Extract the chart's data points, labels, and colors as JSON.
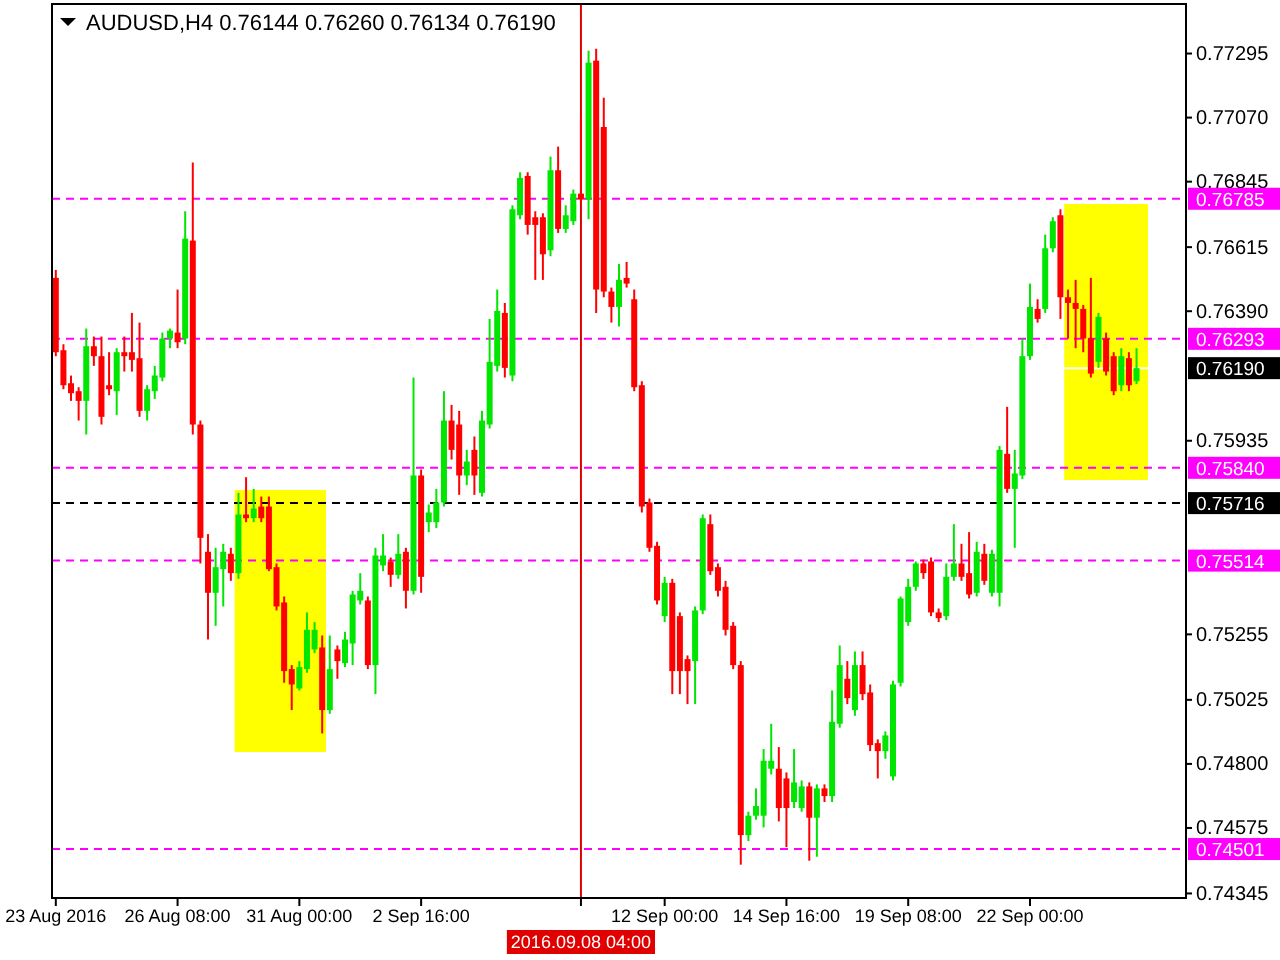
{
  "chart_data": {
    "type": "candlestick",
    "title": "AUDUSD,H4  0.76144 0.76260 0.76134 0.76190",
    "categories": [
      "23 Aug 2016",
      null,
      null,
      null,
      null,
      null,
      null,
      null,
      null,
      null,
      null,
      null,
      null,
      null,
      null,
      null,
      "26 Aug 08:00",
      null,
      null,
      null,
      null,
      null,
      null,
      null,
      null,
      null,
      null,
      null,
      null,
      null,
      null,
      null,
      "31 Aug 00:00",
      null,
      null,
      null,
      null,
      null,
      null,
      null,
      null,
      null,
      null,
      null,
      null,
      null,
      null,
      null,
      "2 Sep 16:00",
      null,
      null,
      null,
      null,
      null,
      null,
      null,
      null,
      null,
      null,
      null,
      null,
      null,
      null,
      null,
      null,
      null,
      null,
      null,
      null,
      "2016.09.08 04:00",
      null,
      null,
      null,
      null,
      null,
      null,
      null,
      null,
      null,
      null,
      "12 Sep 00:00",
      null,
      null,
      null,
      null,
      null,
      null,
      null,
      null,
      null,
      null,
      null,
      null,
      null,
      null,
      null,
      "14 Sep 16:00",
      null,
      null,
      null,
      null,
      null,
      null,
      null,
      null,
      null,
      null,
      null,
      null,
      null,
      null,
      null,
      "19 Sep 08:00",
      null,
      null,
      null,
      null,
      null,
      null,
      null,
      null,
      null,
      null,
      null,
      null,
      null,
      null,
      null,
      "22 Sep 00:00",
      null,
      null,
      null,
      null,
      null,
      null,
      null,
      null,
      null,
      null,
      null,
      null,
      null,
      null,
      null,
      null,
      null,
      null,
      null,
      null
    ],
    "ohlc": [
      [
        0.76507,
        0.76535,
        0.76232,
        0.76246
      ],
      [
        0.76253,
        0.76274,
        0.76116,
        0.7613
      ],
      [
        0.76137,
        0.76164,
        0.76075,
        0.76102
      ],
      [
        0.76109,
        0.76123,
        0.76006,
        0.76075
      ],
      [
        0.76075,
        0.76329,
        0.75957,
        0.76267
      ],
      [
        0.76267,
        0.76301,
        0.76198,
        0.76232
      ],
      [
        0.76232,
        0.76301,
        0.75992,
        0.76019
      ],
      [
        0.7613,
        0.76246,
        0.76095,
        0.76116
      ],
      [
        0.76109,
        0.7626,
        0.76026,
        0.76246
      ],
      [
        0.76246,
        0.76301,
        0.76178,
        0.76232
      ],
      [
        0.76246,
        0.76384,
        0.76178,
        0.76219
      ],
      [
        0.76225,
        0.7635,
        0.76019,
        0.7604
      ],
      [
        0.7604,
        0.7613,
        0.76006,
        0.76116
      ],
      [
        0.76109,
        0.76198,
        0.76082,
        0.76164
      ],
      [
        0.76157,
        0.76315,
        0.76144,
        0.76294
      ],
      [
        0.76294,
        0.76329,
        0.7626,
        0.76322
      ],
      [
        0.76315,
        0.76466,
        0.7626,
        0.76281
      ],
      [
        0.76294,
        0.76741,
        0.76274,
        0.76645
      ],
      [
        0.76638,
        0.76912,
        0.75957,
        0.75992
      ],
      [
        0.75992,
        0.76006,
        0.75504,
        0.75594
      ],
      [
        0.75545,
        0.75607,
        0.75237,
        0.75401
      ],
      [
        0.75401,
        0.75559,
        0.75285,
        0.75491
      ],
      [
        0.75484,
        0.75573,
        0.75353,
        0.75545
      ],
      [
        0.75538,
        0.75559,
        0.75443,
        0.7547
      ],
      [
        0.7547,
        0.75752,
        0.7545,
        0.75676
      ],
      [
        0.75676,
        0.75807,
        0.75649,
        0.75663
      ],
      [
        0.75663,
        0.75766,
        0.75649,
        0.75697
      ],
      [
        0.75704,
        0.75739,
        0.75649,
        0.75663
      ],
      [
        0.75704,
        0.75739,
        0.75477,
        0.75484
      ],
      [
        0.75491,
        0.75504,
        0.75339,
        0.75353
      ],
      [
        0.75367,
        0.75388,
        0.75085,
        0.75126
      ],
      [
        0.75133,
        0.75147,
        0.74989,
        0.75079
      ],
      [
        0.75065,
        0.75161,
        0.75058,
        0.7514
      ],
      [
        0.75133,
        0.75332,
        0.7512,
        0.75271
      ],
      [
        0.75202,
        0.75298,
        0.75189,
        0.75271
      ],
      [
        0.75209,
        0.75251,
        0.74907,
        0.74989
      ],
      [
        0.74989,
        0.75251,
        0.74976,
        0.75133
      ],
      [
        0.75202,
        0.75216,
        0.75099,
        0.75161
      ],
      [
        0.75154,
        0.75264,
        0.7514,
        0.75237
      ],
      [
        0.75223,
        0.75408,
        0.75147,
        0.75395
      ],
      [
        0.75374,
        0.7547,
        0.7536,
        0.75408
      ],
      [
        0.75374,
        0.75388,
        0.75133,
        0.75147
      ],
      [
        0.75147,
        0.75559,
        0.75045,
        0.75532
      ],
      [
        0.75497,
        0.75607,
        0.75477,
        0.75532
      ],
      [
        0.75511,
        0.75525,
        0.75422,
        0.75464
      ],
      [
        0.75464,
        0.75607,
        0.7545,
        0.75538
      ],
      [
        0.75545,
        0.75559,
        0.75346,
        0.75408
      ],
      [
        0.75408,
        0.76157,
        0.75395,
        0.75813
      ],
      [
        0.75813,
        0.75834,
        0.75401,
        0.75457
      ],
      [
        0.75649,
        0.75711,
        0.75614,
        0.75683
      ],
      [
        0.75649,
        0.75766,
        0.75628,
        0.75718
      ],
      [
        0.75718,
        0.76109,
        0.75704,
        0.76006
      ],
      [
        0.76006,
        0.76061,
        0.75869,
        0.75903
      ],
      [
        0.75992,
        0.7604,
        0.75745,
        0.75813
      ],
      [
        0.75813,
        0.75903,
        0.75779,
        0.75862
      ],
      [
        0.75903,
        0.7595,
        0.75745,
        0.75813
      ],
      [
        0.75752,
        0.7604,
        0.75739,
        0.76006
      ],
      [
        0.75992,
        0.76363,
        0.75978,
        0.76212
      ],
      [
        0.76198,
        0.76466,
        0.76178,
        0.76391
      ],
      [
        0.76384,
        0.76419,
        0.76157,
        0.76191
      ],
      [
        0.76164,
        0.76762,
        0.76144,
        0.76748
      ],
      [
        0.76727,
        0.76878,
        0.76713,
        0.76858
      ],
      [
        0.76865,
        0.76878,
        0.76659,
        0.76693
      ],
      [
        0.7672,
        0.76741,
        0.765,
        0.76693
      ],
      [
        0.7672,
        0.76734,
        0.765,
        0.7659
      ],
      [
        0.76604,
        0.76933,
        0.76583,
        0.76885
      ],
      [
        0.76885,
        0.76968,
        0.76665,
        0.76679
      ],
      [
        0.76679,
        0.76762,
        0.76665,
        0.76727
      ],
      [
        0.76706,
        0.76817,
        0.76693,
        0.76803
      ],
      [
        0.76803,
        0.77071,
        0.76769,
        0.76782
      ],
      [
        0.76782,
        0.77305,
        0.76713,
        0.77263
      ],
      [
        0.7727,
        0.77312,
        0.76384,
        0.76466
      ],
      [
        0.77037,
        0.7714,
        0.76439,
        0.76459
      ],
      [
        0.76459,
        0.76473,
        0.7635,
        0.76405
      ],
      [
        0.76405,
        0.76556,
        0.76336,
        0.765
      ],
      [
        0.76507,
        0.76563,
        0.76473,
        0.76487
      ],
      [
        0.76432,
        0.76466,
        0.76109,
        0.76123
      ],
      [
        0.7613,
        0.76144,
        0.75683,
        0.75704
      ],
      [
        0.75718,
        0.75732,
        0.75545,
        0.75559
      ],
      [
        0.75566,
        0.7558,
        0.7536,
        0.75374
      ],
      [
        0.75319,
        0.75457,
        0.75298,
        0.75436
      ],
      [
        0.75436,
        0.7545,
        0.75045,
        0.75126
      ],
      [
        0.75319,
        0.75332,
        0.75045,
        0.75126
      ],
      [
        0.75168,
        0.75181,
        0.7501,
        0.75126
      ],
      [
        0.75161,
        0.75353,
        0.7501,
        0.75339
      ],
      [
        0.75339,
        0.75676,
        0.75326,
        0.75663
      ],
      [
        0.75642,
        0.75676,
        0.75464,
        0.75477
      ],
      [
        0.75491,
        0.75504,
        0.75388,
        0.75408
      ],
      [
        0.75422,
        0.75443,
        0.75251,
        0.75271
      ],
      [
        0.75285,
        0.75298,
        0.75133,
        0.75147
      ],
      [
        0.75147,
        0.75161,
        0.74446,
        0.7455
      ],
      [
        0.7455,
        0.74632,
        0.74529,
        0.74618
      ],
      [
        0.74618,
        0.74714,
        0.74604,
        0.74652
      ],
      [
        0.74618,
        0.74852,
        0.74577,
        0.74811
      ],
      [
        0.74783,
        0.74941,
        0.74763,
        0.74811
      ],
      [
        0.74783,
        0.74859,
        0.74598,
        0.74645
      ],
      [
        0.74749,
        0.7477,
        0.74508,
        0.74645
      ],
      [
        0.74666,
        0.74852,
        0.74645,
        0.74735
      ],
      [
        0.74645,
        0.74742,
        0.74632,
        0.74721
      ],
      [
        0.74721,
        0.74735,
        0.7446,
        0.74611
      ],
      [
        0.74611,
        0.74728,
        0.74474,
        0.74714
      ],
      [
        0.74714,
        0.74728,
        0.74666,
        0.74687
      ],
      [
        0.74687,
        0.75058,
        0.74666,
        0.74948
      ],
      [
        0.74941,
        0.75216,
        0.74927,
        0.75147
      ],
      [
        0.75099,
        0.75161,
        0.7501,
        0.75031
      ],
      [
        0.74989,
        0.75195,
        0.74969,
        0.75147
      ],
      [
        0.75147,
        0.75195,
        0.75024,
        0.75045
      ],
      [
        0.75051,
        0.75079,
        0.74845,
        0.74866
      ],
      [
        0.74873,
        0.74886,
        0.74749,
        0.74845
      ],
      [
        0.74845,
        0.74914,
        0.74818,
        0.749
      ],
      [
        0.74756,
        0.75092,
        0.74742,
        0.75079
      ],
      [
        0.75085,
        0.75388,
        0.75072,
        0.75381
      ],
      [
        0.75298,
        0.7545,
        0.75285,
        0.75422
      ],
      [
        0.75422,
        0.75511,
        0.75408,
        0.75504
      ],
      [
        0.75504,
        0.75518,
        0.7545,
        0.7547
      ],
      [
        0.75511,
        0.75525,
        0.75319,
        0.75332
      ],
      [
        0.75332,
        0.75346,
        0.75298,
        0.75312
      ],
      [
        0.75319,
        0.75504,
        0.75305,
        0.75457
      ],
      [
        0.75457,
        0.75642,
        0.75443,
        0.75504
      ],
      [
        0.75504,
        0.75573,
        0.75443,
        0.75457
      ],
      [
        0.7547,
        0.75614,
        0.75381,
        0.75395
      ],
      [
        0.75401,
        0.7558,
        0.75388,
        0.75545
      ],
      [
        0.75538,
        0.75573,
        0.75429,
        0.75443
      ],
      [
        0.75401,
        0.75552,
        0.75388,
        0.75538
      ],
      [
        0.75401,
        0.75917,
        0.75353,
        0.75903
      ],
      [
        0.75889,
        0.76054,
        0.75752,
        0.75766
      ],
      [
        0.75766,
        0.75903,
        0.75559,
        0.7582
      ],
      [
        0.75813,
        0.76294,
        0.758,
        0.76232
      ],
      [
        0.76232,
        0.76487,
        0.76219,
        0.76405
      ],
      [
        0.76398,
        0.76432,
        0.7635,
        0.76363
      ],
      [
        0.76398,
        0.76659,
        0.76384,
        0.76611
      ],
      [
        0.76611,
        0.7672,
        0.76597,
        0.76706
      ],
      [
        0.76727,
        0.76748,
        0.76363,
        0.76439
      ],
      [
        0.76439,
        0.76466,
        0.76294,
        0.76419
      ],
      [
        0.76419,
        0.765,
        0.7626,
        0.76398
      ],
      [
        0.76398,
        0.76412,
        0.76246,
        0.76294
      ],
      [
        0.76294,
        0.76507,
        0.76157,
        0.76171
      ],
      [
        0.76212,
        0.76384,
        0.76191,
        0.7637
      ],
      [
        0.76294,
        0.76315,
        0.76164,
        0.76178
      ],
      [
        0.76232,
        0.76246,
        0.76095,
        0.76109
      ],
      [
        0.7613,
        0.7626,
        0.76109,
        0.76232
      ],
      [
        0.76225,
        0.76246,
        0.76109,
        0.7613
      ],
      [
        0.76144,
        0.7626,
        0.76134,
        0.7619
      ],
      null,
      null,
      null,
      null,
      null,
      null
    ],
    "colors": [
      "#ff0000",
      "#ff0000",
      "#ff0000",
      "#ff0000",
      "#00e600",
      "#ff0000",
      "#ff0000",
      "#ff0000",
      "#00e600",
      "#ff0000",
      "#ff0000",
      "#ff0000",
      "#00e600",
      "#00e600",
      "#00e600",
      "#00e600",
      "#ff0000",
      "#00e600",
      "#ff0000",
      "#ff0000",
      "#ff0000",
      "#00e600",
      "#00e600",
      "#ff0000",
      "#00e600",
      "#ff0000",
      "#00e600",
      "#ff0000",
      "#ff0000",
      "#ff0000",
      "#ff0000",
      "#ff0000",
      "#00e600",
      "#00e600",
      "#00e600",
      "#ff0000",
      "#00e600",
      "#ff0000",
      "#00e600",
      "#00e600",
      "#00e600",
      "#ff0000",
      "#00e600",
      "#00e600",
      "#ff0000",
      "#00e600",
      "#ff0000",
      "#00e600",
      "#ff0000",
      "#00e600",
      "#00e600",
      "#00e600",
      "#ff0000",
      "#ff0000",
      "#00e600",
      "#ff0000",
      "#00e600",
      "#00e600",
      "#00e600",
      "#ff0000",
      "#00e600",
      "#00e600",
      "#ff0000",
      "#ff0000",
      "#ff0000",
      "#00e600",
      "#ff0000",
      "#00e600",
      "#00e600",
      "#ff0000",
      "#00e600",
      "#ff0000",
      "#ff0000",
      "#ff0000",
      "#00e600",
      "#ff0000",
      "#ff0000",
      "#ff0000",
      "#ff0000",
      "#ff0000",
      "#00e600",
      "#ff0000",
      "#ff0000",
      "#ff0000",
      "#00e600",
      "#00e600",
      "#ff0000",
      "#ff0000",
      "#ff0000",
      "#ff0000",
      "#ff0000",
      "#00e600",
      "#00e600",
      "#00e600",
      "#00e600",
      "#ff0000",
      "#ff0000",
      "#00e600",
      "#00e600",
      "#ff0000",
      "#00e600",
      "#ff0000",
      "#00e600",
      "#00e600",
      "#ff0000",
      "#00e600",
      "#ff0000",
      "#ff0000",
      "#ff0000",
      "#00e600",
      "#00e600",
      "#00e600",
      "#00e600",
      "#00e600",
      "#ff0000",
      "#ff0000",
      "#ff0000",
      "#00e600",
      "#00e600",
      "#ff0000",
      "#ff0000",
      "#00e600",
      "#ff0000",
      "#00e600",
      "#00e600",
      "#ff0000",
      "#00e600",
      "#00e600",
      "#00e600",
      "#ff0000",
      "#00e600",
      "#00e600",
      "#ff0000",
      "#ff0000",
      "#ff0000",
      "#ff0000",
      "#ff0000",
      "#00e600",
      "#ff0000",
      "#ff0000",
      "#00e600",
      "#ff0000",
      "#00e600",
      null,
      null,
      null,
      null,
      null,
      null
    ],
    "ylim": [
      0.74329,
      0.77469
    ],
    "yticks": [
      0.77295,
      {
        "value": 0.7707,
        "label": "0.77070"
      },
      0.76845,
      0.76615,
      {
        "value": 0.7639,
        "label": "0.76390"
      },
      0.75935,
      0.75255,
      0.75025,
      {
        "value": 0.748,
        "label": "0.74800"
      },
      0.74575,
      0.74345
    ],
    "ref_lines": [
      {
        "axis": "y",
        "value": 0.76785,
        "label": "0.76785",
        "color": "#ff00ff",
        "line_style": "dashed"
      },
      {
        "axis": "y",
        "value": 0.76293,
        "label": "0.76293",
        "color": "#ff00ff",
        "line_style": "dashed"
      },
      {
        "axis": "y",
        "value": 0.7619,
        "label": "0.76190",
        "color": "#ffffff",
        "line_style": "solid"
      },
      {
        "axis": "y",
        "value": 0.7584,
        "label": "0.75840",
        "color": "#ff00ff",
        "line_style": "dashed"
      },
      {
        "axis": "y",
        "value": 0.75716,
        "label": "0.75716",
        "color": "#000000",
        "line_style": "dashed"
      },
      {
        "axis": "y",
        "value": 0.75514,
        "label": "0.75514",
        "color": "#ff00ff",
        "line_style": "dashed"
      },
      {
        "axis": "y",
        "value": 0.74501,
        "label": "0.74501",
        "color": "#ff00ff",
        "line_style": "dashed"
      },
      {
        "axis": "x",
        "value": "2016.09.08 04:00",
        "color": "#e00000",
        "line_style": "solid"
      }
    ]
  }
}
